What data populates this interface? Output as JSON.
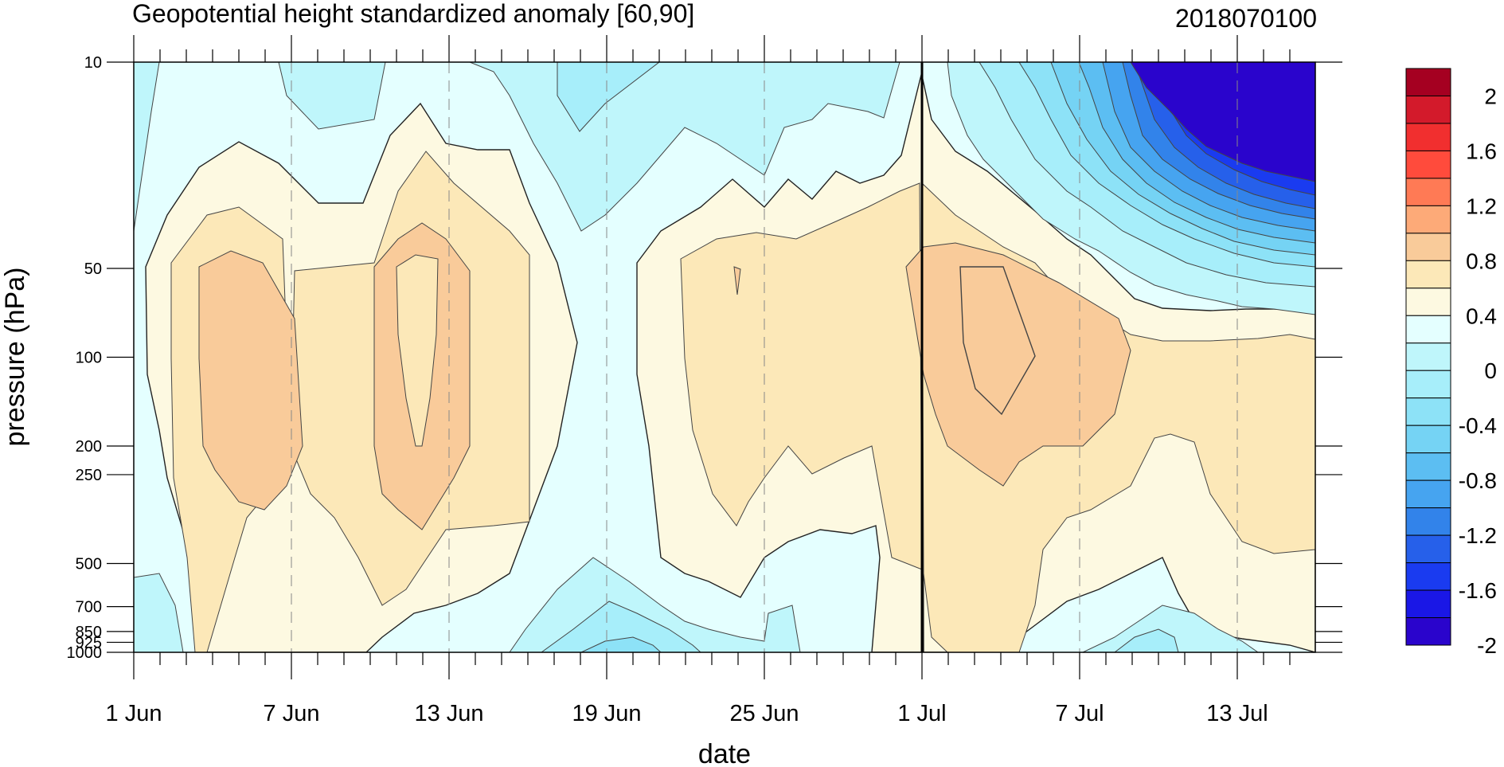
{
  "chart_data": {
    "type": "heatmap",
    "title": "Geopotential height standardized anomaly [60,90]",
    "init_label": "2018070100",
    "xlabel": "date",
    "ylabel": "pressure (hPa)",
    "x_range": [
      "1 Jun",
      "16 Jul"
    ],
    "x_ticks": [
      "1 Jun",
      "7 Jun",
      "13 Jun",
      "19 Jun",
      "25 Jun",
      "1 Jul",
      "7 Jul",
      "13 Jul"
    ],
    "y_scale": "log",
    "y_ticks": [
      "10",
      "50",
      "100",
      "200",
      "250",
      "500",
      "700",
      "850",
      "925",
      "1000"
    ],
    "ylim": [
      1000,
      10
    ],
    "marker_date": "1 Jul",
    "grid": "dashed vertical lines at x ticks",
    "colorbar": {
      "labels": [
        "2",
        "1.6",
        "1.2",
        "0.8",
        "0.4",
        "0",
        "-0.4",
        "-0.8",
        "-1.2",
        "-1.6",
        "-2"
      ],
      "colors": [
        "#a50021",
        "#d31a2b",
        "#f12f2f",
        "#ff4b3c",
        "#ff7a55",
        "#fdaa78",
        "#f9cb9a",
        "#fce8b8",
        "#fdf9e1",
        "#e4ffff",
        "#bff6fb",
        "#a7eefa",
        "#8de2f7",
        "#75d3f4",
        "#5cbef2",
        "#46a4f0",
        "#3283ea",
        "#2660ea",
        "#1a3bf0",
        "#1a17e6",
        "#2a04cc"
      ]
    },
    "series": [
      {
        "name": "",
        "values": []
      }
    ],
    "fields_summary": [
      {
        "region": "1 Jun-17 Jun, 50-300 hPa",
        "anomaly": 0.6
      },
      {
        "region": "19 Jun, 10-1000 hPa",
        "anomaly": 0.0
      },
      {
        "region": "21 Jun-1 Jul, 50-400 hPa",
        "anomaly": 0.3
      },
      {
        "region": "2 Jul-6 Jul, 50-250 hPa",
        "anomaly": 0.6
      },
      {
        "region": "9 Jul-16 Jul, 10-30 hPa",
        "anomaly": -2.0
      },
      {
        "region": "19 Jun, 900-1000 hPa",
        "anomaly": -0.4
      }
    ]
  }
}
